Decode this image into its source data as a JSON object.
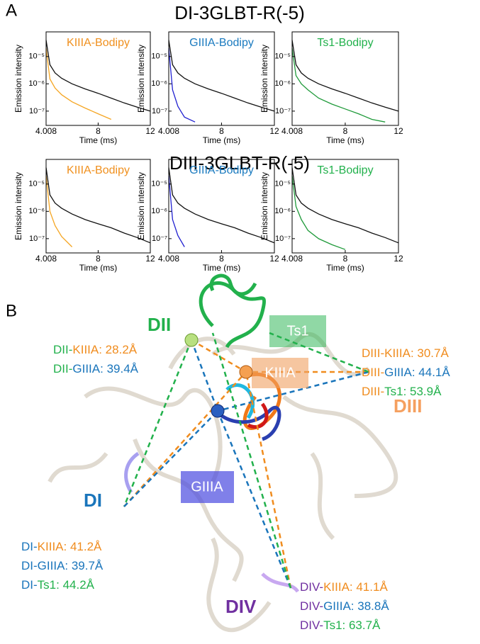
{
  "panel_a": {
    "label": "A",
    "rows": [
      "DI-3GLBT-R(-5)",
      "DIII-3GLBT-R(-5)"
    ]
  },
  "chart_data": [
    {
      "type": "line",
      "title": "KIIIA-Bodipy",
      "title_color": "#f0901e",
      "x_label": "Time (ms)",
      "y_label": "Emission intensity",
      "log_y": true,
      "xlim": [
        4.008,
        12
      ],
      "xticks": [
        4.008,
        8,
        12
      ],
      "ylim": [
        3e-08,
        8e-05
      ],
      "yticks": [
        {
          "value": 1e-07,
          "label": "10⁻⁷"
        },
        {
          "value": 1e-06,
          "label": "10⁻⁶"
        },
        {
          "value": 1e-05,
          "label": "10⁻⁵"
        }
      ],
      "x": [
        4.008,
        4.3,
        4.7,
        5.2,
        6,
        7,
        8,
        9,
        10,
        11,
        12
      ],
      "series": [
        {
          "color": "#111111",
          "values": [
            4e-05,
            5e-06,
            2.5e-06,
            1.6e-06,
            1e-06,
            6.5e-07,
            4.5e-07,
            3e-07,
            2e-07,
            1.4e-07,
            1e-07
          ]
        },
        {
          "color": "#f5a623",
          "values": [
            2e-05,
            1.5e-06,
            7e-07,
            4e-07,
            2.2e-07,
            1.3e-07,
            8e-08,
            5e-08,
            null,
            null,
            null
          ]
        }
      ]
    },
    {
      "type": "line",
      "title": "GIIIA-Bodipy",
      "title_color": "#1a7abf",
      "x_label": "Time (ms)",
      "y_label": "Emission intensity",
      "log_y": true,
      "xlim": [
        4.008,
        12
      ],
      "xticks": [
        4.008,
        8,
        12
      ],
      "ylim": [
        3e-08,
        8e-05
      ],
      "yticks": [
        {
          "value": 1e-07,
          "label": "10⁻⁷"
        },
        {
          "value": 1e-06,
          "label": "10⁻⁶"
        },
        {
          "value": 1e-05,
          "label": "10⁻⁵"
        }
      ],
      "x": [
        4.008,
        4.3,
        4.7,
        5.2,
        6,
        7,
        8,
        9,
        10,
        11,
        12
      ],
      "series": [
        {
          "color": "#111111",
          "values": [
            4e-05,
            5e-06,
            2.5e-06,
            1.6e-06,
            1e-06,
            6.5e-07,
            4.5e-07,
            3e-07,
            2e-07,
            1.4e-07,
            1e-07
          ]
        },
        {
          "color": "#2020d0",
          "values": [
            2e-05,
            6e-07,
            1.5e-07,
            6e-08,
            4e-08,
            null,
            null,
            null,
            null,
            null,
            null
          ]
        }
      ]
    },
    {
      "type": "line",
      "title": "Ts1-Bodipy",
      "title_color": "#22b14c",
      "x_label": "Time (ms)",
      "y_label": "Emission intensity",
      "log_y": true,
      "xlim": [
        4.008,
        12
      ],
      "xticks": [
        4.008,
        8,
        12
      ],
      "ylim": [
        3e-08,
        8e-05
      ],
      "yticks": [
        {
          "value": 1e-07,
          "label": "10⁻⁷"
        },
        {
          "value": 1e-06,
          "label": "10⁻⁶"
        },
        {
          "value": 1e-05,
          "label": "10⁻⁵"
        }
      ],
      "x": [
        4.008,
        4.3,
        4.7,
        5.2,
        6,
        7,
        8,
        9,
        10,
        11,
        12
      ],
      "series": [
        {
          "color": "#111111",
          "values": [
            4e-05,
            5e-06,
            2.5e-06,
            1.6e-06,
            1e-06,
            6.5e-07,
            4.5e-07,
            3e-07,
            2e-07,
            1.4e-07,
            1e-07
          ]
        },
        {
          "color": "#1f9a3a",
          "values": [
            2e-05,
            2e-06,
            1e-06,
            6e-07,
            3e-07,
            1.8e-07,
            1.2e-07,
            8e-08,
            5e-08,
            4e-08,
            null
          ]
        }
      ]
    },
    {
      "type": "line",
      "title": "KIIIA-Bodipy",
      "title_color": "#f0901e",
      "x_label": "Time (ms)",
      "y_label": "Emission intensity",
      "log_y": true,
      "xlim": [
        4.008,
        12
      ],
      "xticks": [
        4.008,
        8,
        12
      ],
      "ylim": [
        3e-08,
        8e-05
      ],
      "yticks": [
        {
          "value": 1e-07,
          "label": "10⁻⁷"
        },
        {
          "value": 1e-06,
          "label": "10⁻⁶"
        },
        {
          "value": 1e-05,
          "label": "10⁻⁵"
        }
      ],
      "x": [
        4.008,
        4.3,
        4.7,
        5.2,
        6,
        7,
        8,
        9,
        10,
        11,
        12
      ],
      "series": [
        {
          "color": "#111111",
          "values": [
            4e-05,
            4e-06,
            2e-06,
            1.3e-06,
            8e-07,
            5e-07,
            3.5e-07,
            2.5e-07,
            1.6e-07,
            1.1e-07,
            7e-08
          ]
        },
        {
          "color": "#f5a623",
          "values": [
            2e-05,
            1e-06,
            3e-07,
            1.2e-07,
            5e-08,
            null,
            null,
            null,
            null,
            null,
            null
          ]
        }
      ]
    },
    {
      "type": "line",
      "title": "GIIIA-Bodipy",
      "title_color": "#1a7abf",
      "x_label": "Time (ms)",
      "y_label": "Emission intensity",
      "log_y": true,
      "xlim": [
        4.008,
        12
      ],
      "xticks": [
        4.008,
        8,
        12
      ],
      "ylim": [
        3e-08,
        8e-05
      ],
      "yticks": [
        {
          "value": 1e-07,
          "label": "10⁻⁷"
        },
        {
          "value": 1e-06,
          "label": "10⁻⁶"
        },
        {
          "value": 1e-05,
          "label": "10⁻⁵"
        }
      ],
      "x": [
        4.008,
        4.3,
        4.7,
        5.2,
        6,
        7,
        8,
        9,
        10,
        11,
        12
      ],
      "series": [
        {
          "color": "#111111",
          "values": [
            4e-05,
            4e-06,
            2e-06,
            1.3e-06,
            8e-07,
            5e-07,
            3.5e-07,
            2.5e-07,
            1.6e-07,
            1.1e-07,
            7e-08
          ]
        },
        {
          "color": "#2020d0",
          "values": [
            2e-05,
            5e-07,
            1.3e-07,
            5e-08,
            null,
            null,
            null,
            null,
            null,
            null,
            null
          ]
        }
      ]
    },
    {
      "type": "line",
      "title": "Ts1-Bodipy",
      "title_color": "#22b14c",
      "x_label": "Time (ms)",
      "y_label": "Emission intensity",
      "log_y": true,
      "xlim": [
        4.008,
        12
      ],
      "xticks": [
        4.008,
        8,
        12
      ],
      "ylim": [
        3e-08,
        8e-05
      ],
      "yticks": [
        {
          "value": 1e-07,
          "label": "10⁻⁷"
        },
        {
          "value": 1e-06,
          "label": "10⁻⁶"
        },
        {
          "value": 1e-05,
          "label": "10⁻⁵"
        }
      ],
      "x": [
        4.008,
        4.3,
        4.7,
        5.2,
        6,
        7,
        8,
        9,
        10,
        11,
        12
      ],
      "series": [
        {
          "color": "#111111",
          "values": [
            4e-05,
            4e-06,
            2e-06,
            1.3e-06,
            8e-07,
            5e-07,
            3.5e-07,
            2.5e-07,
            1.6e-07,
            1.1e-07,
            7e-08
          ]
        },
        {
          "color": "#1f9a3a",
          "values": [
            2e-05,
            1.5e-06,
            5e-07,
            2e-07,
            1e-07,
            6e-08,
            4e-08,
            null,
            null,
            null,
            null
          ]
        }
      ]
    }
  ],
  "panel_b": {
    "label": "B",
    "sites": {
      "dii": "DII",
      "di": "DI",
      "diii": "DIII",
      "div": "DIV"
    },
    "toxins": {
      "ts1": "Ts1",
      "kiiia": "KIIIA",
      "giiia": "GIIIA"
    },
    "distances": {
      "dii": [
        [
          "DII-",
          "KIIIA: 28.2Å"
        ],
        [
          "DII-",
          "GIIIA: 39.4Å"
        ]
      ],
      "diii": [
        [
          "DIII-",
          "KIIIA: 30.7Å"
        ],
        [
          "DIII-",
          "GIIIA: 44.1Å"
        ],
        [
          "DIII-",
          "Ts1: 53.9Å"
        ]
      ],
      "di": [
        [
          "DI-",
          "KIIIA: 41.2Å"
        ],
        [
          "DI-",
          "GIIIA: 39.7Å"
        ],
        [
          "DI-",
          "Ts1: 44.2Å"
        ]
      ],
      "div": [
        [
          "DIV-",
          "KIIIA: 41.1Å"
        ],
        [
          "DIV-",
          "GIIIA: 38.8Å"
        ],
        [
          "DIV-",
          "Ts1: 63.7Å"
        ]
      ]
    }
  }
}
